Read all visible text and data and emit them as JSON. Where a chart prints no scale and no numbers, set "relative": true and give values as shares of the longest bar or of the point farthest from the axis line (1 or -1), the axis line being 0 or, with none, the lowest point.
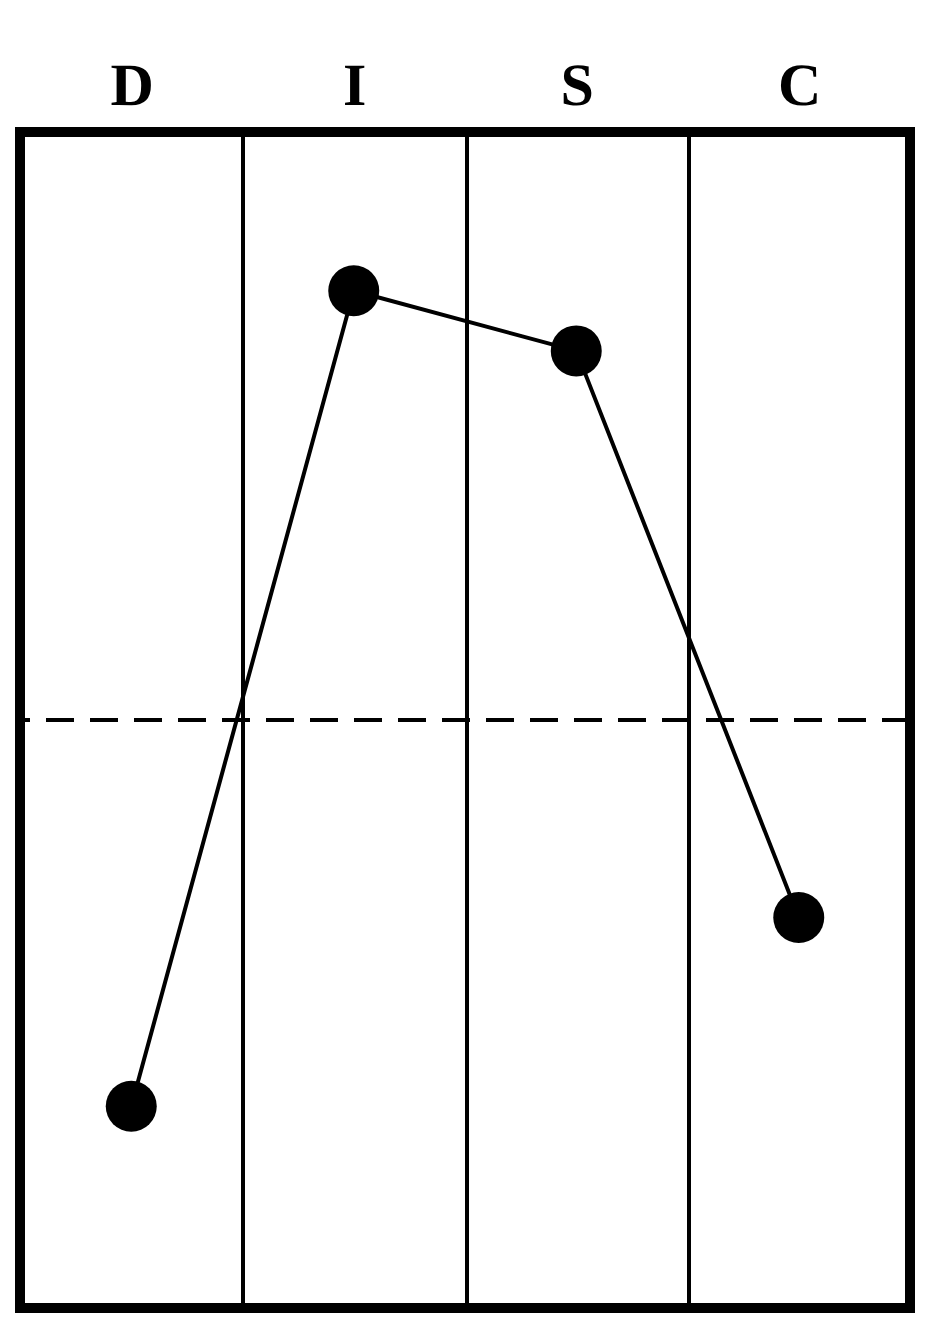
{
  "chart_data": {
    "type": "line",
    "relative": true,
    "categories": [
      "D",
      "I",
      "S",
      "C"
    ],
    "values": [
      -0.9,
      1,
      0.86,
      -0.46
    ],
    "color": "#000000",
    "marker": "circle",
    "line_style": "solid",
    "grid": "x",
    "ref_lines": [
      {
        "axis": "y",
        "value": 0,
        "line_style": "dashed",
        "color": "#000000"
      }
    ]
  }
}
